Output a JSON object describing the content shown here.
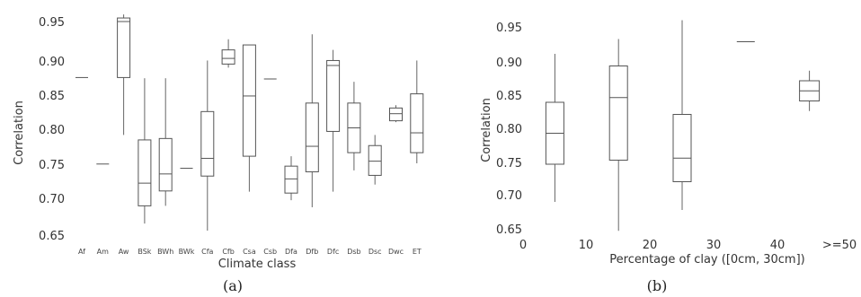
{
  "chart_data": [
    {
      "type": "box",
      "panel_label": "(a)",
      "xlabel": "Climate class",
      "ylabel": "Correlation",
      "ylim": [
        0.65,
        0.95
      ],
      "yticks": [
        "0.95",
        "0.90",
        "0.85",
        "0.80",
        "0.75",
        "0.70",
        "0.65"
      ],
      "categories": [
        "Af",
        "Am",
        "Aw",
        "BSk",
        "BWh",
        "BWk",
        "Cfa",
        "Cfb",
        "Csa",
        "Csb",
        "Dfa",
        "Dfb",
        "Dfc",
        "Dsb",
        "Dsc",
        "Dwc",
        "ET"
      ],
      "boxes": [
        {
          "category": "Af",
          "min": 0.871,
          "q1": 0.871,
          "median": 0.871,
          "q3": 0.871,
          "max": 0.871
        },
        {
          "category": "Am",
          "min": 0.749,
          "q1": 0.749,
          "median": 0.749,
          "q3": 0.749,
          "max": 0.749
        },
        {
          "category": "Aw",
          "min": 0.79,
          "q1": 0.871,
          "median": 0.95,
          "q3": 0.955,
          "max": 0.96
        },
        {
          "category": "BSk",
          "min": 0.665,
          "q1": 0.69,
          "median": 0.722,
          "q3": 0.783,
          "max": 0.87
        },
        {
          "category": "BWh",
          "min": 0.69,
          "q1": 0.711,
          "median": 0.735,
          "q3": 0.785,
          "max": 0.87
        },
        {
          "category": "BWk",
          "min": 0.743,
          "q1": 0.743,
          "median": 0.743,
          "q3": 0.743,
          "max": 0.743
        },
        {
          "category": "Cfa",
          "min": 0.655,
          "q1": 0.732,
          "median": 0.757,
          "q3": 0.823,
          "max": 0.895
        },
        {
          "category": "Cfb",
          "min": 0.885,
          "q1": 0.89,
          "median": 0.898,
          "q3": 0.91,
          "max": 0.925
        },
        {
          "category": "Csa",
          "min": 0.71,
          "q1": 0.76,
          "median": 0.845,
          "q3": 0.917,
          "max": 0.917
        },
        {
          "category": "Csb",
          "min": 0.869,
          "q1": 0.869,
          "median": 0.869,
          "q3": 0.869,
          "max": 0.869
        },
        {
          "category": "Dfa",
          "min": 0.698,
          "q1": 0.708,
          "median": 0.728,
          "q3": 0.746,
          "max": 0.76
        },
        {
          "category": "Dfb",
          "min": 0.688,
          "q1": 0.738,
          "median": 0.774,
          "q3": 0.835,
          "max": 0.932
        },
        {
          "category": "Dfc",
          "min": 0.71,
          "q1": 0.795,
          "median": 0.888,
          "q3": 0.895,
          "max": 0.91
        },
        {
          "category": "Dsb",
          "min": 0.74,
          "q1": 0.765,
          "median": 0.8,
          "q3": 0.835,
          "max": 0.865
        },
        {
          "category": "Dsc",
          "min": 0.72,
          "q1": 0.733,
          "median": 0.753,
          "q3": 0.775,
          "max": 0.79
        },
        {
          "category": "Dwc",
          "min": 0.808,
          "q1": 0.81,
          "median": 0.82,
          "q3": 0.828,
          "max": 0.832
        },
        {
          "category": "ET",
          "min": 0.75,
          "q1": 0.765,
          "median": 0.793,
          "q3": 0.848,
          "max": 0.895
        }
      ]
    },
    {
      "type": "box",
      "panel_label": "(b)",
      "xlabel": "Percentage of clay ([0cm, 30cm])",
      "ylabel": "Correlation",
      "ylim": [
        0.65,
        0.95
      ],
      "yticks": [
        "0.95",
        "0.90",
        "0.85",
        "0.80",
        "0.75",
        "0.70",
        "0.65"
      ],
      "xticks": [
        "0",
        "10",
        "20",
        "30",
        "40",
        ">=50"
      ],
      "boxes": [
        {
          "bin": "0-10",
          "min": 0.69,
          "q1": 0.746,
          "median": 0.792,
          "q3": 0.838,
          "max": 0.91
        },
        {
          "bin": "10-20",
          "min": 0.647,
          "q1": 0.752,
          "median": 0.845,
          "q3": 0.892,
          "max": 0.932
        },
        {
          "bin": "20-30",
          "min": 0.678,
          "q1": 0.72,
          "median": 0.755,
          "q3": 0.82,
          "max": 0.96
        },
        {
          "bin": "30-40",
          "min": 0.928,
          "q1": 0.928,
          "median": 0.928,
          "q3": 0.928,
          "max": 0.928
        },
        {
          "bin": "40-50",
          "min": 0.825,
          "q1": 0.84,
          "median": 0.855,
          "q3": 0.87,
          "max": 0.885
        }
      ]
    }
  ]
}
